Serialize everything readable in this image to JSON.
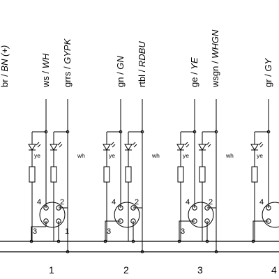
{
  "top_left_label": {
    "plain": "br / ",
    "italic": "BN (+)"
  },
  "wires": [
    {
      "plain": "ws / ",
      "italic": "WH"
    },
    {
      "plain": "grrs / ",
      "italic": "GYPK"
    },
    {
      "plain": "gn / ",
      "italic": "GN"
    },
    {
      "plain": "rtbl / ",
      "italic": "RDBU"
    },
    {
      "plain": "ge / ",
      "italic": "YE"
    },
    {
      "plain": "wsgn / ",
      "italic": "WHGN"
    },
    {
      "plain": "gr / ",
      "italic": "GY"
    }
  ],
  "led_colors": [
    "ye",
    "wh",
    "ye",
    "wh",
    "ye",
    "wh",
    "ye"
  ],
  "connectors": [
    {
      "number": "1",
      "pins": {
        "p1": "1",
        "p2": "2",
        "p3": "3",
        "p4": "4"
      }
    },
    {
      "number": "2",
      "pins": {
        "p2": "2",
        "p3": "3",
        "p4": "4"
      }
    },
    {
      "number": "3",
      "pins": {
        "p2": "2",
        "p3": "3",
        "p4": "4"
      }
    },
    {
      "number": "4",
      "pins": {
        "p4": "4"
      }
    }
  ]
}
